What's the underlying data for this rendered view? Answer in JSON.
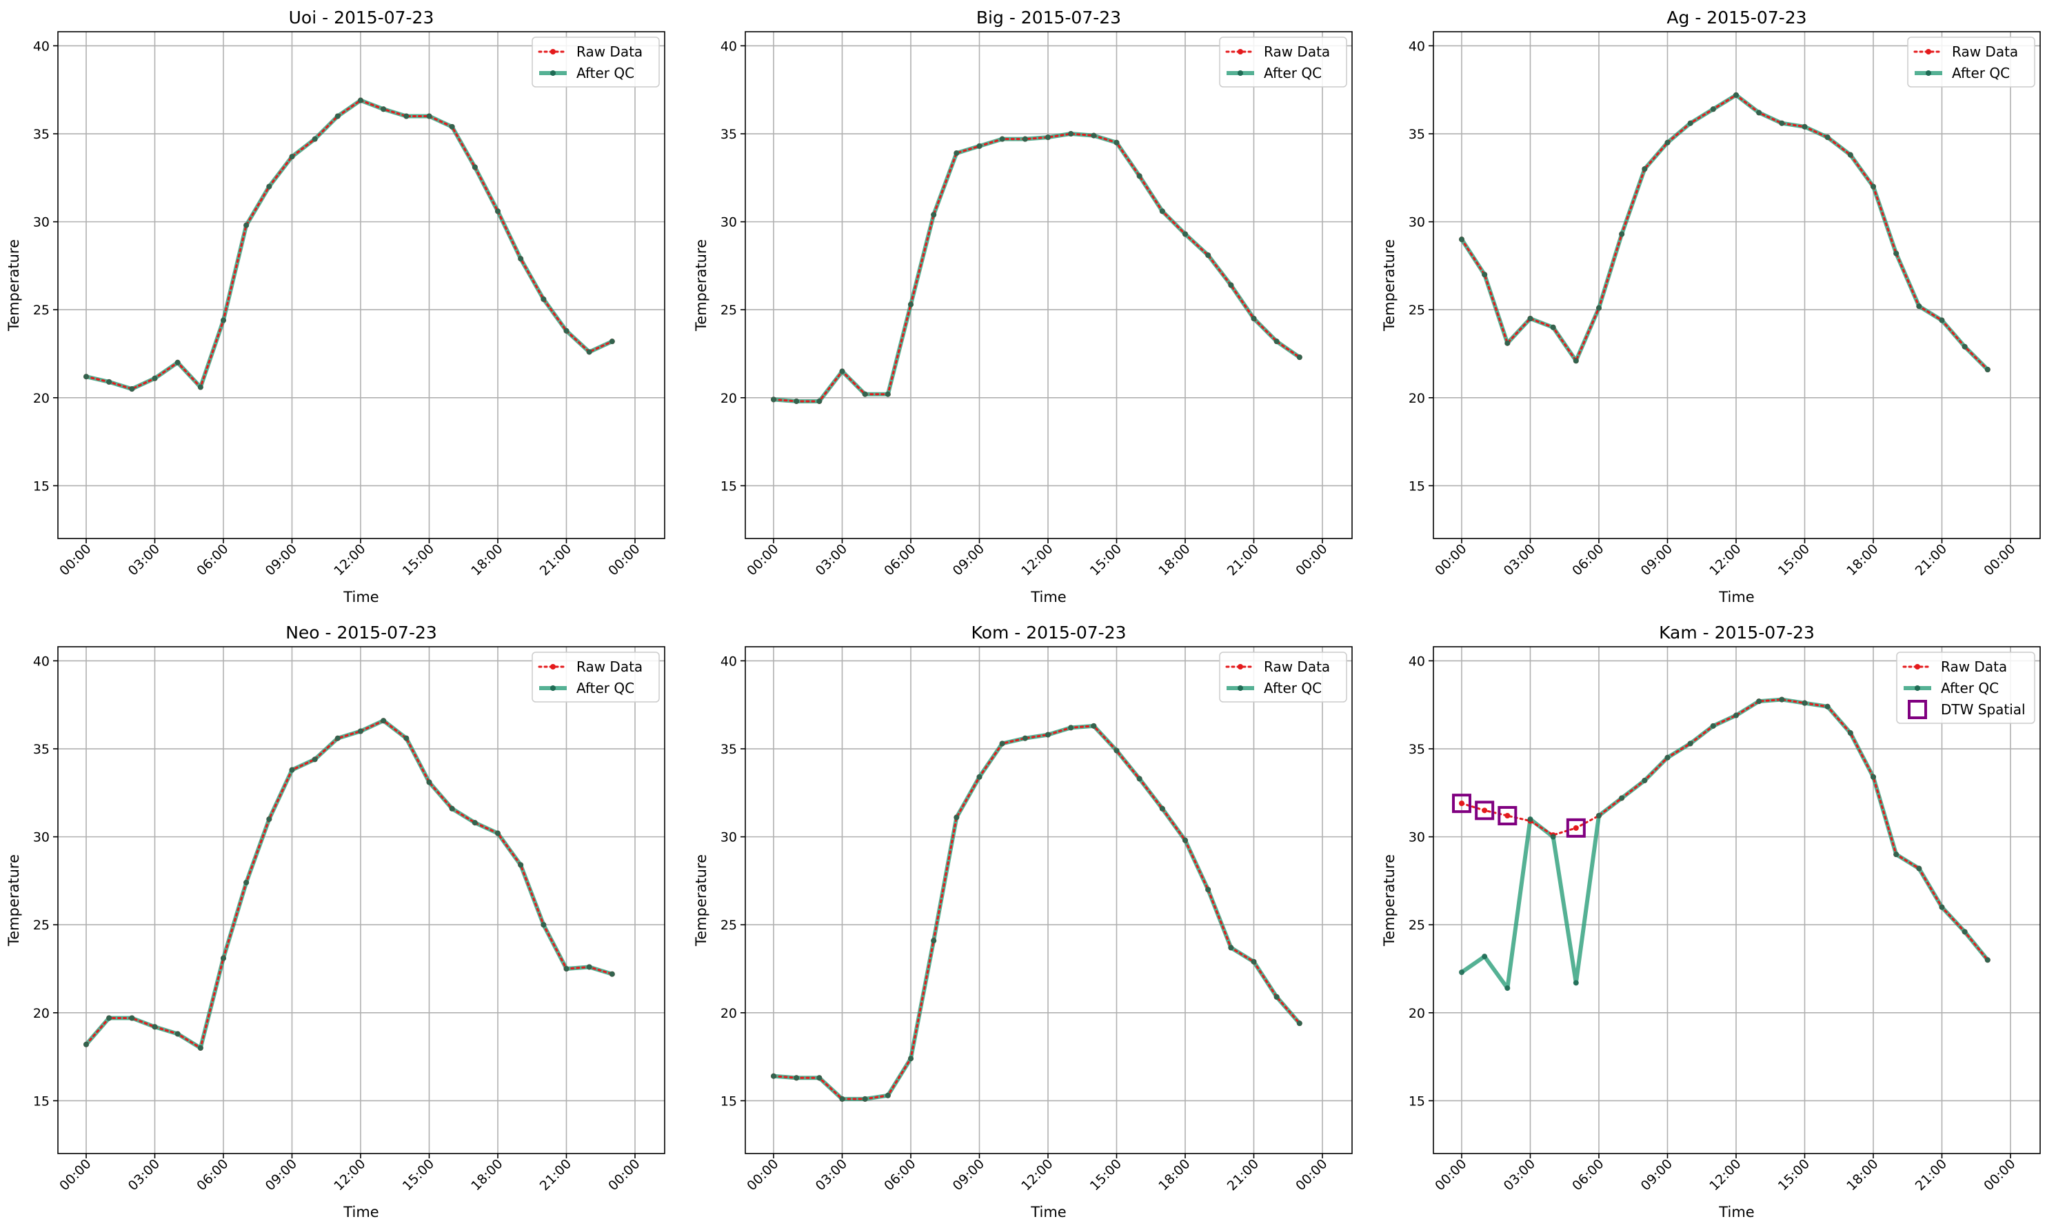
{
  "colors": {
    "raw": "#e41a1c",
    "qc": "#2a9d79",
    "qc_marker": "#1f6b54",
    "dtw": "#800080",
    "grid": "#b0b0b0"
  },
  "chart_data": [
    {
      "type": "line",
      "title": "Uoi - 2015-07-23",
      "xlabel": "Time",
      "ylabel": "Temperature",
      "xticks": [
        "00:00",
        "03:00",
        "06:00",
        "09:00",
        "12:00",
        "15:00",
        "18:00",
        "21:00",
        "00:00"
      ],
      "yticks": [
        "15",
        "20",
        "25",
        "30",
        "35",
        "40"
      ],
      "ylim": [
        12,
        40.8
      ],
      "grid": true,
      "legend_position": "top-right",
      "series": [
        {
          "name": "Raw Data",
          "values": [
            21.2,
            20.9,
            20.5,
            21.1,
            22.0,
            20.6,
            24.4,
            29.8,
            32.0,
            33.7,
            34.7,
            36.0,
            36.9,
            36.4,
            36.0,
            36.0,
            35.4,
            33.1,
            30.6,
            27.9,
            25.6,
            23.8,
            22.6,
            23.2
          ]
        },
        {
          "name": "After QC",
          "values": [
            21.2,
            20.9,
            20.5,
            21.1,
            22.0,
            20.6,
            24.4,
            29.8,
            32.0,
            33.7,
            34.7,
            36.0,
            36.9,
            36.4,
            36.0,
            36.0,
            35.4,
            33.1,
            30.6,
            27.9,
            25.6,
            23.8,
            22.6,
            23.2
          ]
        }
      ]
    },
    {
      "type": "line",
      "title": "Big - 2015-07-23",
      "xlabel": "Time",
      "ylabel": "Temperature",
      "xticks": [
        "00:00",
        "03:00",
        "06:00",
        "09:00",
        "12:00",
        "15:00",
        "18:00",
        "21:00",
        "00:00"
      ],
      "yticks": [
        "15",
        "20",
        "25",
        "30",
        "35",
        "40"
      ],
      "ylim": [
        12,
        40.8
      ],
      "grid": true,
      "legend_position": "top-right",
      "series": [
        {
          "name": "Raw Data",
          "values": [
            19.9,
            19.8,
            19.8,
            21.5,
            20.2,
            20.2,
            25.3,
            30.4,
            33.9,
            34.3,
            34.7,
            34.7,
            34.8,
            35.0,
            34.9,
            34.5,
            32.6,
            30.6,
            29.3,
            28.1,
            26.4,
            24.5,
            23.2,
            22.3
          ]
        },
        {
          "name": "After QC",
          "values": [
            19.9,
            19.8,
            19.8,
            21.5,
            20.2,
            20.2,
            25.3,
            30.4,
            33.9,
            34.3,
            34.7,
            34.7,
            34.8,
            35.0,
            34.9,
            34.5,
            32.6,
            30.6,
            29.3,
            28.1,
            26.4,
            24.5,
            23.2,
            22.3
          ]
        }
      ]
    },
    {
      "type": "line",
      "title": "Ag - 2015-07-23",
      "xlabel": "Time",
      "ylabel": "Temperature",
      "xticks": [
        "00:00",
        "03:00",
        "06:00",
        "09:00",
        "12:00",
        "15:00",
        "18:00",
        "21:00",
        "00:00"
      ],
      "yticks": [
        "15",
        "20",
        "25",
        "30",
        "35",
        "40"
      ],
      "ylim": [
        12,
        40.8
      ],
      "grid": true,
      "legend_position": "top-right",
      "series": [
        {
          "name": "Raw Data",
          "values": [
            29.0,
            27.0,
            23.1,
            24.5,
            24.0,
            22.1,
            25.1,
            29.3,
            33.0,
            34.5,
            35.6,
            36.4,
            37.2,
            36.2,
            35.6,
            35.4,
            34.8,
            33.8,
            32.0,
            28.2,
            25.2,
            24.4,
            22.9,
            21.6
          ]
        },
        {
          "name": "After QC",
          "values": [
            29.0,
            27.0,
            23.1,
            24.5,
            24.0,
            22.1,
            25.1,
            29.3,
            33.0,
            34.5,
            35.6,
            36.4,
            37.2,
            36.2,
            35.6,
            35.4,
            34.8,
            33.8,
            32.0,
            28.2,
            25.2,
            24.4,
            22.9,
            21.6
          ]
        }
      ]
    },
    {
      "type": "line",
      "title": "Neo - 2015-07-23",
      "xlabel": "Time",
      "ylabel": "Temperature",
      "xticks": [
        "00:00",
        "03:00",
        "06:00",
        "09:00",
        "12:00",
        "15:00",
        "18:00",
        "21:00",
        "00:00"
      ],
      "yticks": [
        "15",
        "20",
        "25",
        "30",
        "35",
        "40"
      ],
      "ylim": [
        12,
        40.8
      ],
      "grid": true,
      "legend_position": "top-right",
      "series": [
        {
          "name": "Raw Data",
          "values": [
            18.2,
            19.7,
            19.7,
            19.2,
            18.8,
            18.0,
            23.1,
            27.4,
            31.0,
            33.8,
            34.4,
            35.6,
            36.0,
            36.6,
            35.6,
            33.1,
            31.6,
            30.8,
            30.2,
            28.4,
            25.0,
            22.5,
            22.6,
            22.2
          ]
        },
        {
          "name": "After QC",
          "values": [
            18.2,
            19.7,
            19.7,
            19.2,
            18.8,
            18.0,
            23.1,
            27.4,
            31.0,
            33.8,
            34.4,
            35.6,
            36.0,
            36.6,
            35.6,
            33.1,
            31.6,
            30.8,
            30.2,
            28.4,
            25.0,
            22.5,
            22.6,
            22.2
          ]
        }
      ]
    },
    {
      "type": "line",
      "title": "Kom - 2015-07-23",
      "xlabel": "Time",
      "ylabel": "Temperature",
      "xticks": [
        "00:00",
        "03:00",
        "06:00",
        "09:00",
        "12:00",
        "15:00",
        "18:00",
        "21:00",
        "00:00"
      ],
      "yticks": [
        "15",
        "20",
        "25",
        "30",
        "35",
        "40"
      ],
      "ylim": [
        12,
        40.8
      ],
      "grid": true,
      "legend_position": "top-right",
      "series": [
        {
          "name": "Raw Data",
          "values": [
            16.4,
            16.3,
            16.3,
            15.1,
            15.1,
            15.3,
            17.4,
            24.1,
            31.1,
            33.4,
            35.3,
            35.6,
            35.8,
            36.2,
            36.3,
            34.9,
            33.3,
            31.6,
            29.8,
            27.0,
            23.7,
            22.9,
            20.9,
            19.4
          ]
        },
        {
          "name": "After QC",
          "values": [
            16.4,
            16.3,
            16.3,
            15.1,
            15.1,
            15.3,
            17.4,
            24.1,
            31.1,
            33.4,
            35.3,
            35.6,
            35.8,
            36.2,
            36.3,
            34.9,
            33.3,
            31.6,
            29.8,
            27.0,
            23.7,
            22.9,
            20.9,
            19.4
          ]
        }
      ]
    },
    {
      "type": "line",
      "title": "Kam - 2015-07-23",
      "xlabel": "Time",
      "ylabel": "Temperature",
      "xticks": [
        "00:00",
        "03:00",
        "06:00",
        "09:00",
        "12:00",
        "15:00",
        "18:00",
        "21:00",
        "00:00"
      ],
      "yticks": [
        "15",
        "20",
        "25",
        "30",
        "35",
        "40"
      ],
      "ylim": [
        12,
        40.8
      ],
      "grid": true,
      "legend_position": "top-right",
      "series": [
        {
          "name": "Raw Data",
          "values": [
            31.9,
            31.5,
            31.2,
            30.9,
            30.1,
            30.5,
            31.2,
            32.2,
            33.2,
            34.5,
            35.3,
            36.3,
            36.9,
            37.7,
            37.8,
            37.6,
            37.4,
            35.9,
            33.4,
            29.0,
            28.2,
            26.0,
            24.6,
            23.0
          ]
        },
        {
          "name": "After QC",
          "values": [
            22.3,
            23.2,
            21.4,
            31.0,
            30.0,
            21.7,
            31.2,
            32.2,
            33.2,
            34.5,
            35.3,
            36.3,
            36.9,
            37.7,
            37.8,
            37.6,
            37.4,
            35.9,
            33.4,
            29.0,
            28.2,
            26.0,
            24.6,
            23.0
          ]
        },
        {
          "name": "DTW Spatial",
          "marker": "square",
          "points": [
            {
              "hour": 0,
              "value": 31.9
            },
            {
              "hour": 1,
              "value": 31.5
            },
            {
              "hour": 2,
              "value": 31.2
            },
            {
              "hour": 5,
              "value": 30.5
            }
          ]
        }
      ]
    }
  ]
}
